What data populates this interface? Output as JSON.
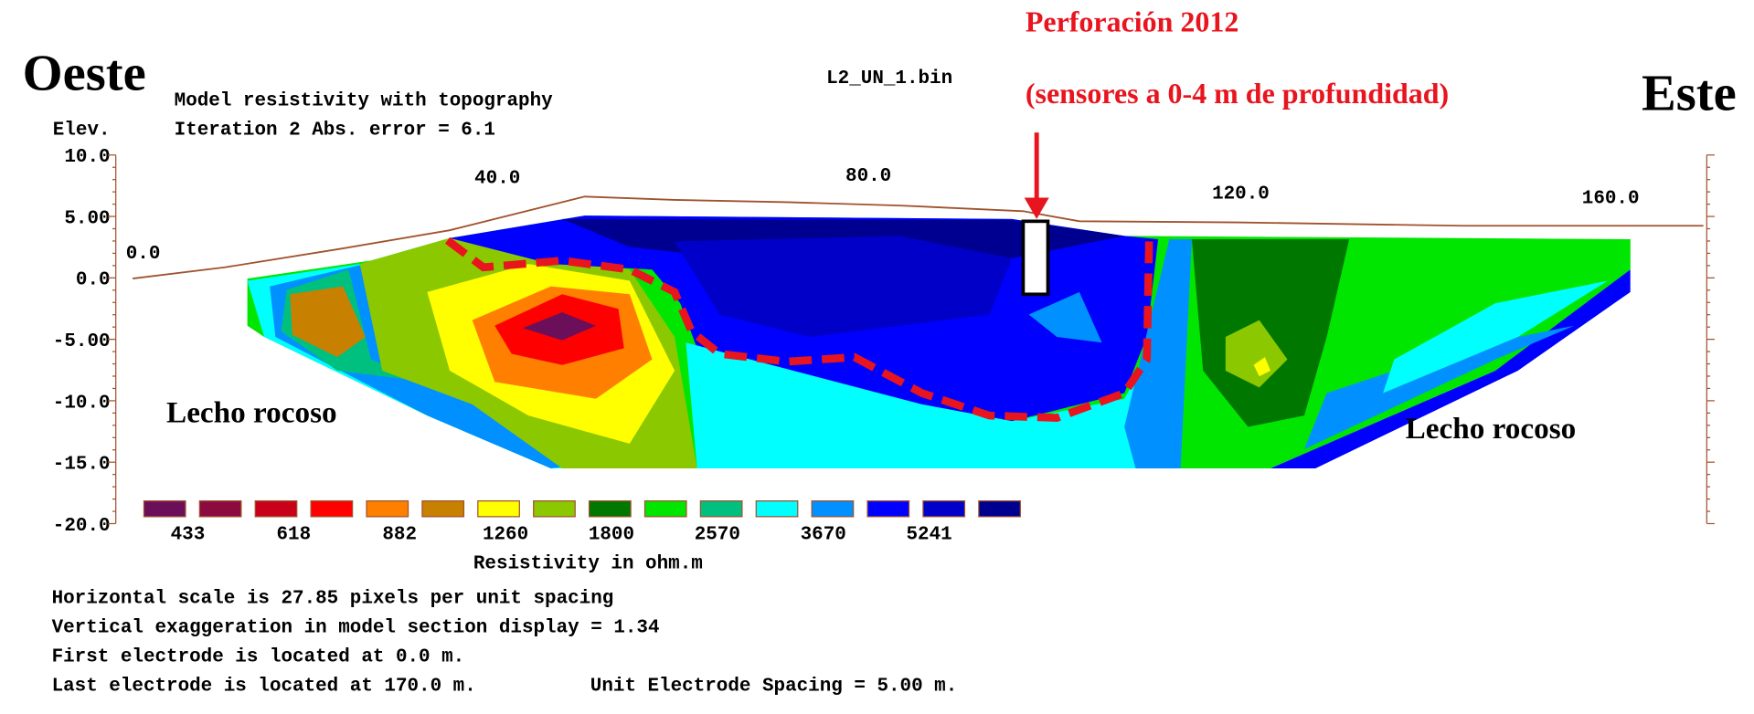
{
  "header": {
    "left": "Oeste",
    "right": "Este",
    "title": "Model resistivity with topography",
    "iteration": "Iteration 2 Abs. error = 6.1",
    "file": "L2_UN_1.bin"
  },
  "annotation": {
    "line1": "Perforación 2012",
    "line2": "(sensores  a 0-4 m de profundidad)"
  },
  "axis": {
    "y_title": "Elev.",
    "y_ticks": [
      "10.0",
      "5.00",
      "0.0",
      "-5.00",
      "-10.0",
      "-15.0",
      "-20.0"
    ],
    "x_ticks": [
      "0.0",
      "40.0",
      "80.0",
      "120.0",
      "160.0"
    ]
  },
  "labels": [
    "Lecho rocoso",
    "Lecho rocoso"
  ],
  "colorbar": {
    "colors": [
      "#6b0f5a",
      "#8b0a3f",
      "#c8001a",
      "#ff0000",
      "#ff7f00",
      "#c88000",
      "#ffff00",
      "#8cc800",
      "#007800",
      "#00e600",
      "#00c080",
      "#00ffff",
      "#0090ff",
      "#0000ff",
      "#0000c8",
      "#000090"
    ],
    "labels": [
      "433",
      "618",
      "882",
      "1260",
      "1800",
      "2570",
      "3670",
      "5241"
    ],
    "title": "Resistivity in ohm.m"
  },
  "footer": [
    "Horizontal scale is 27.85 pixels per unit spacing",
    "Vertical exaggeration in model section display = 1.34",
    "First electrode is located at 0.0  m.",
    "Last electrode is located at 170.0 m.",
    "Unit Electrode Spacing = 5.00 m."
  ]
}
